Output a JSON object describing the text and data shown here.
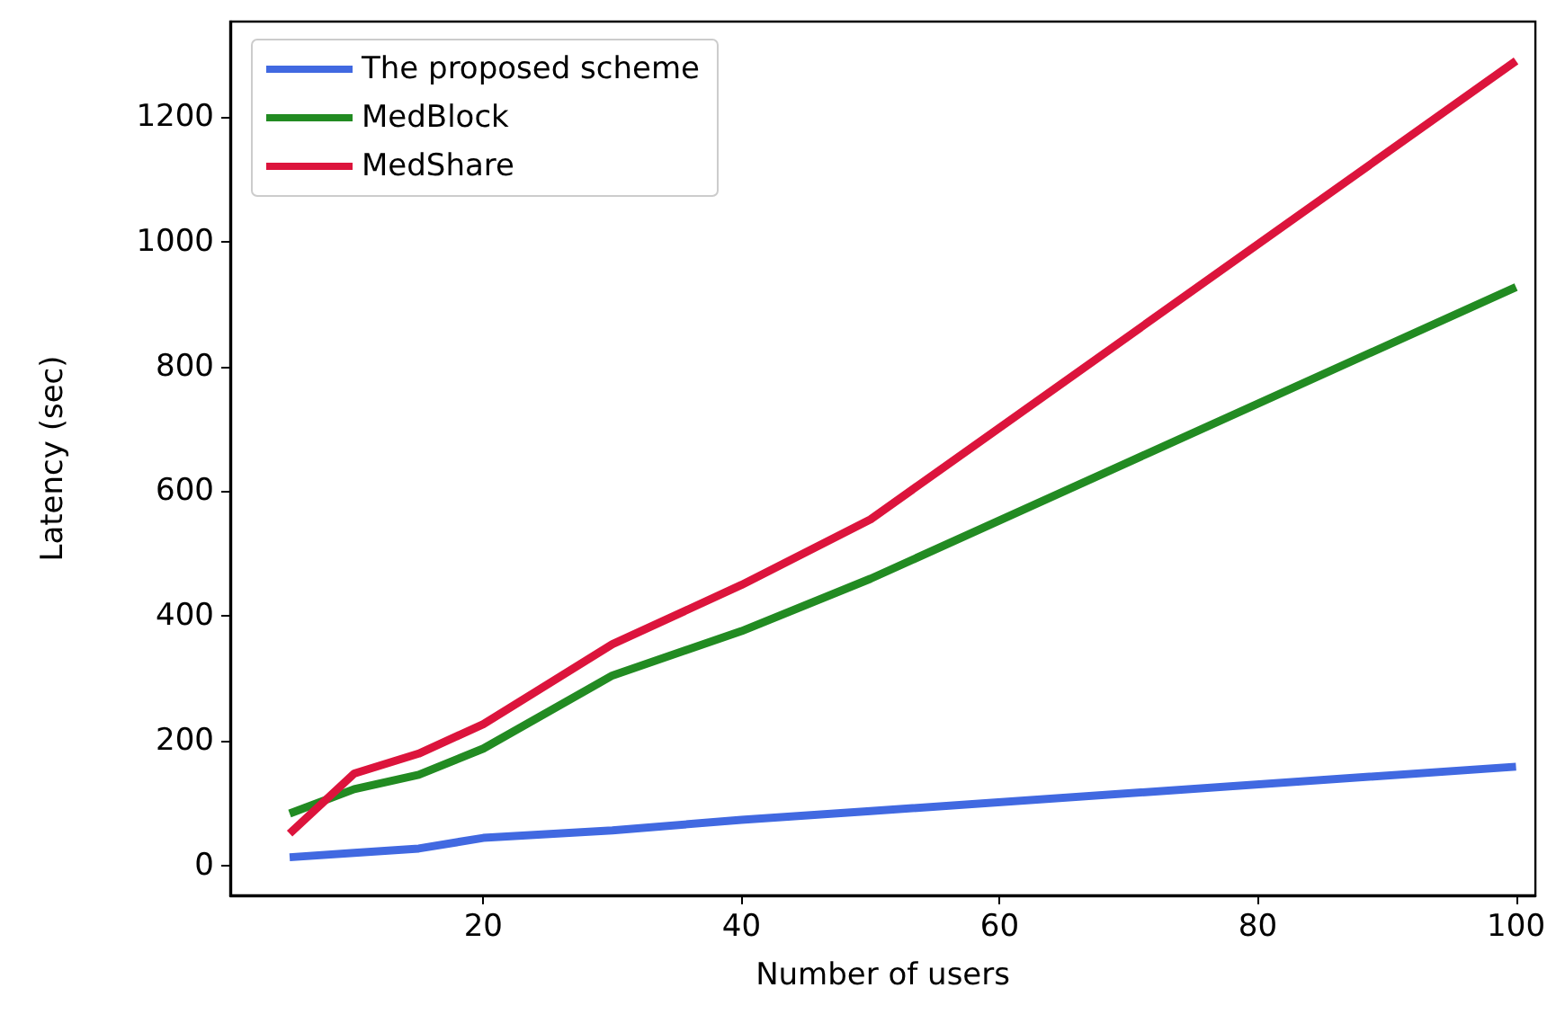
{
  "chart_data": {
    "type": "line",
    "xlabel": "Number of users",
    "ylabel": "Latency (sec)",
    "x": [
      5,
      10,
      15,
      20,
      30,
      40,
      50,
      100
    ],
    "xlim": [
      0.4,
      101.5
    ],
    "xticks": [
      20,
      40,
      60,
      80,
      100
    ],
    "ylim": [
      -47,
      1352
    ],
    "yticks": [
      0,
      200,
      400,
      600,
      800,
      1000,
      1200
    ],
    "grid": false,
    "legend": "top left",
    "marker": "none",
    "line_style": "solid",
    "series": [
      {
        "name": "The proposed scheme",
        "color": "#4169e1",
        "values": [
          14,
          21,
          28,
          45,
          57,
          74,
          88,
          159
        ]
      },
      {
        "name": "MedBlock",
        "color": "#228b22",
        "values": [
          84,
          123,
          146,
          188,
          305,
          376,
          460,
          927
        ]
      },
      {
        "name": "MedShare",
        "color": "#dc143c",
        "values": [
          52,
          148,
          180,
          227,
          355,
          450,
          555,
          1289
        ]
      }
    ]
  }
}
